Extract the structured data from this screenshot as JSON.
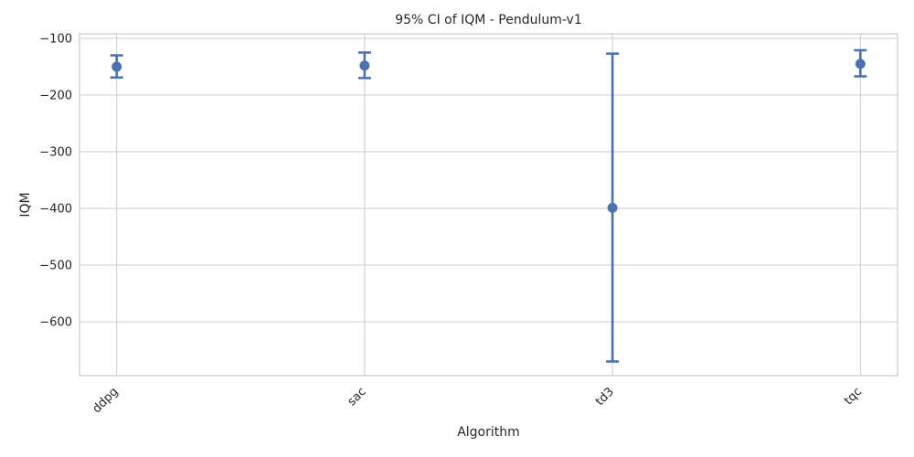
{
  "chart_data": {
    "type": "point-errorbar",
    "title": "95% CI of IQM - Pendulum-v1",
    "xlabel": "Algorithm",
    "ylabel": "IQM",
    "categories": [
      "ddpg",
      "sac",
      "td3",
      "tqc"
    ],
    "series": [
      {
        "values": [
          -150,
          -148,
          -399,
          -145
        ],
        "ci_low": [
          -169,
          -170,
          -670,
          -167
        ],
        "ci_high": [
          -130,
          -125,
          -127,
          -121
        ]
      }
    ],
    "ylim": [
      -695,
      -92
    ],
    "yticks": [
      -100,
      -200,
      -300,
      -400,
      -500,
      -600
    ],
    "grid": true,
    "color": "#4c72b0"
  }
}
